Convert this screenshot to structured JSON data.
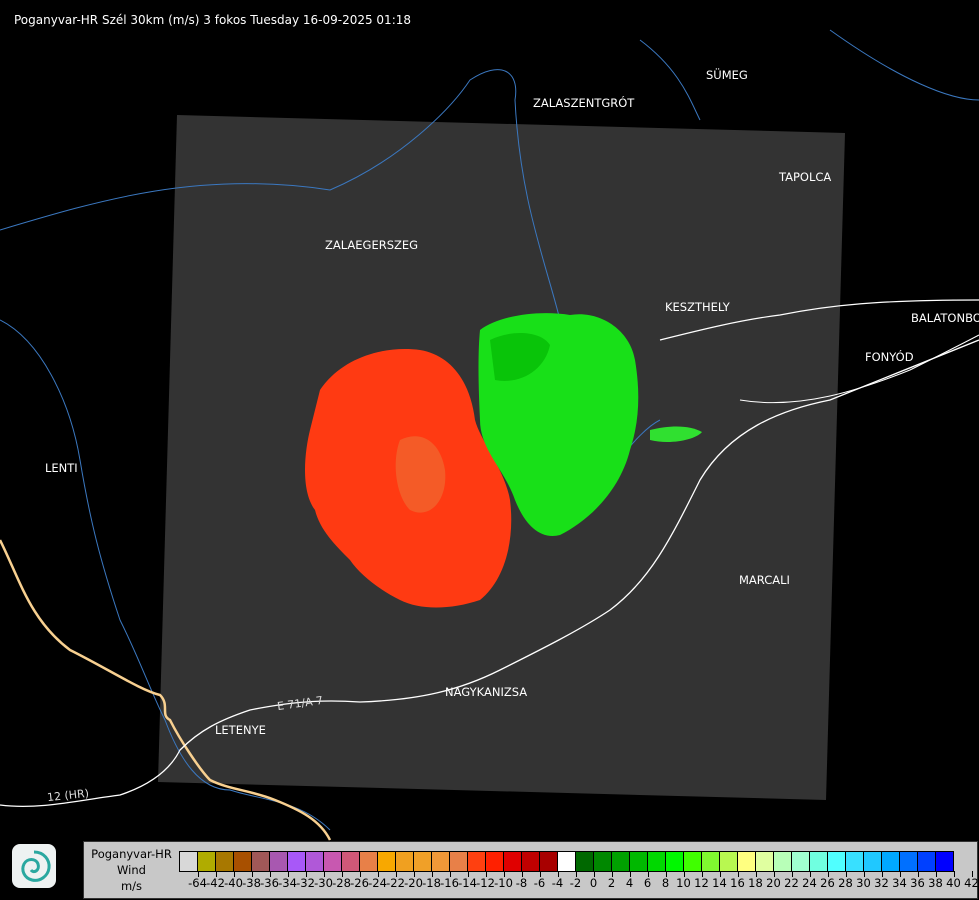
{
  "title": "Poganyvar-HR Szél 30km (m/s) 3 fokos Tuesday 16-09-2025 01:18",
  "cities": [
    {
      "name": "SÜMEG"
    },
    {
      "name": "ZALASZENTGRÓT"
    },
    {
      "name": "TAPOLCA"
    },
    {
      "name": "ZALAEGERSZEG"
    },
    {
      "name": "KESZTHELY"
    },
    {
      "name": "BALATONBO"
    },
    {
      "name": "FONYÓD"
    },
    {
      "name": "LENTI"
    },
    {
      "name": "MARCALI"
    },
    {
      "name": "NAGYKANIZSA"
    },
    {
      "name": "LETENYE"
    }
  ],
  "roads": [
    {
      "name": "E 71/A 7"
    },
    {
      "name": "12 (HR)"
    }
  ],
  "legend": {
    "name_line1": "Poganyvar-HR",
    "name_line2": "Wind",
    "unit": "m/s",
    "labels": [
      "-64",
      "-42",
      "-40",
      "-38",
      "-36",
      "-34",
      "-32",
      "-30",
      "-28",
      "-26",
      "-24",
      "-22",
      "-20",
      "-18",
      "-16",
      "-14",
      "-12",
      "-10",
      "-8",
      "-6",
      "-4",
      "-2",
      "0",
      "2",
      "4",
      "6",
      "8",
      "10",
      "12",
      "14",
      "16",
      "18",
      "20",
      "22",
      "24",
      "26",
      "28",
      "30",
      "32",
      "34",
      "36",
      "38",
      "40",
      "42"
    ],
    "colors": [
      "#d8d8d8",
      "#b0ac00",
      "#a87800",
      "#a85000",
      "#a05858",
      "#a858b0",
      "#a858f8",
      "#b058d8",
      "#c858b0",
      "#d05878",
      "#e88048",
      "#f8a800",
      "#f0a020",
      "#f0a028",
      "#f09838",
      "#e88048",
      "#ff4010",
      "#ff2000",
      "#e00000",
      "#c00000",
      "#a80000",
      "#ffffff",
      "#006800",
      "#008800",
      "#00a000",
      "#00b800",
      "#00d800",
      "#00f800",
      "#40ff00",
      "#80f830",
      "#b8f850",
      "#ffff80",
      "#e0ffa0",
      "#b8ffb8",
      "#a0ffd0",
      "#70ffe0",
      "#50ffff",
      "#38e0ff",
      "#20c8ff",
      "#00a8ff",
      "#0070ff",
      "#0040ff",
      "#0000ff"
    ]
  },
  "colors": {
    "coverage": "#333333",
    "river": "#3b78c0",
    "border": "#f8d090",
    "road": "#ffffff",
    "approaching": "#ff3010",
    "receding": "#20d020"
  }
}
